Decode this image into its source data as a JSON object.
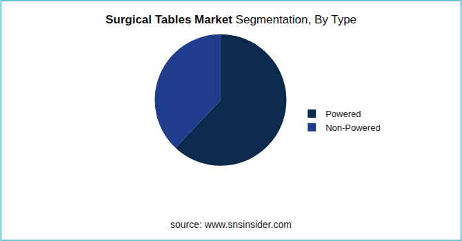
{
  "chart_data": {
    "type": "pie",
    "title": "Surgical Tables Market Segmentation, By Type",
    "categories": [
      "Powered",
      "Non-Powered"
    ],
    "values": [
      62,
      38
    ],
    "colors": [
      "#0c2a4d",
      "#1f3d8c"
    ],
    "legend": "right",
    "annotations": [
      "source: www.snsinsider.com"
    ]
  }
}
